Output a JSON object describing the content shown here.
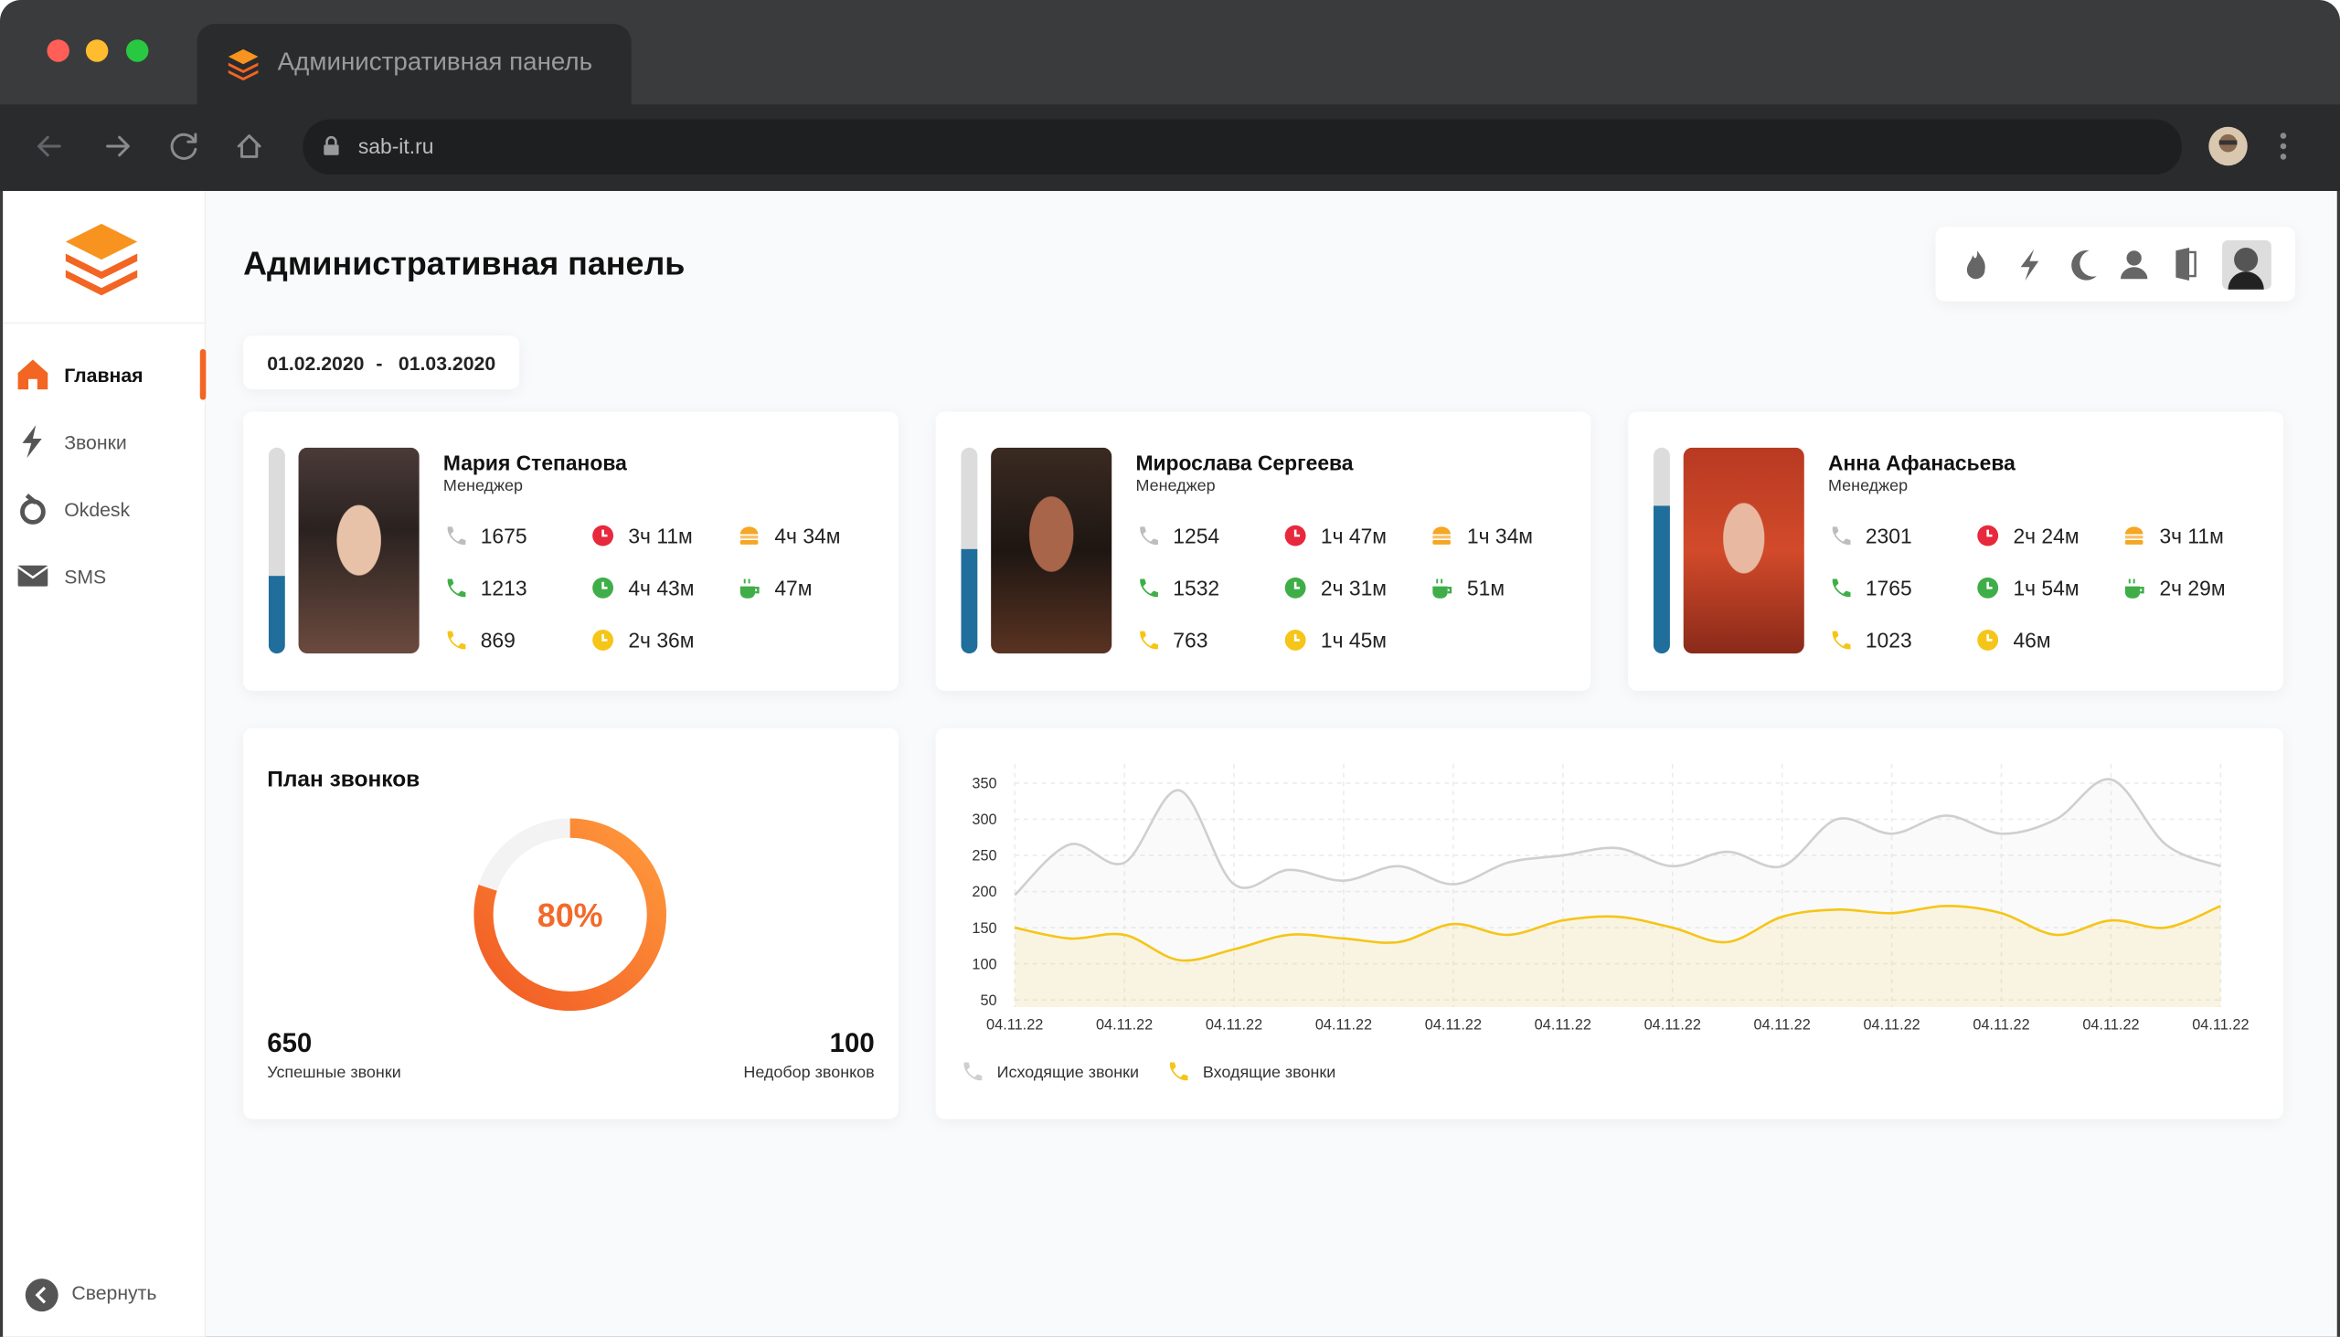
{
  "browser": {
    "tab_title": "Административная панель",
    "url": "sab-it.ru"
  },
  "sidebar": {
    "items": [
      {
        "label": "Главная",
        "active": true
      },
      {
        "label": "Звонки",
        "active": false
      },
      {
        "label": "Okdesk",
        "active": false
      },
      {
        "label": "SMS",
        "active": false
      }
    ],
    "collapse": "Свернуть"
  },
  "header": {
    "title": "Административная панель"
  },
  "date_range": {
    "from": "01.02.2020",
    "separator": "-",
    "to": "01.03.2020"
  },
  "employees": [
    {
      "name": "Мария Степанова",
      "role": "Менеджер",
      "progress": 38,
      "stats": [
        [
          "1675",
          "3ч 11м",
          "4ч 34м"
        ],
        [
          "1213",
          "4ч 43м",
          "47м"
        ],
        [
          "869",
          "2ч 36м"
        ]
      ]
    },
    {
      "name": "Мирослава Сергеева",
      "role": "Менеджер",
      "progress": 51,
      "stats": [
        [
          "1254",
          "1ч 47м",
          "1ч 34м"
        ],
        [
          "1532",
          "2ч 31м",
          "51м"
        ],
        [
          "763",
          "1ч 45м"
        ]
      ]
    },
    {
      "name": "Анна Афанасьева",
      "role": "Менеджер",
      "progress": 72,
      "stats": [
        [
          "2301",
          "2ч 24м",
          "3ч 11м"
        ],
        [
          "1765",
          "1ч 54м",
          "2ч 29м"
        ],
        [
          "1023",
          "46м"
        ]
      ]
    }
  ],
  "plan": {
    "title": "План звонков",
    "percent": 80,
    "percent_label": "80%",
    "success": 650,
    "success_label": "Успешные звонки",
    "shortfall": 100,
    "shortfall_label": "Недобор звонков"
  },
  "chart_data": {
    "type": "line",
    "categories": [
      "04.11.22",
      null,
      "04.11.22",
      null,
      "04.11.22",
      null,
      "04.11.22",
      null,
      "04.11.22",
      null,
      "04.11.22",
      null,
      "04.11.22",
      null,
      "04.11.22",
      null,
      "04.11.22",
      null,
      "04.11.22",
      null,
      "04.11.22",
      null,
      "04.11.22"
    ],
    "ylim": [
      40,
      360
    ],
    "yticks": [
      50,
      100,
      150,
      200,
      250,
      300,
      350
    ],
    "grid": true,
    "series": [
      {
        "name": "Исходящие звонки",
        "color": "#cfcfcf",
        "values": [
          195,
          265,
          240,
          340,
          210,
          230,
          215,
          235,
          210,
          240,
          250,
          260,
          235,
          255,
          235,
          300,
          280,
          305,
          280,
          300,
          355,
          265,
          235
        ]
      },
      {
        "name": "Входящие звонки",
        "color": "#f5c518",
        "values": [
          150,
          135,
          140,
          105,
          120,
          140,
          135,
          130,
          155,
          140,
          160,
          165,
          150,
          130,
          165,
          175,
          170,
          180,
          170,
          140,
          160,
          150,
          180
        ]
      }
    ]
  }
}
